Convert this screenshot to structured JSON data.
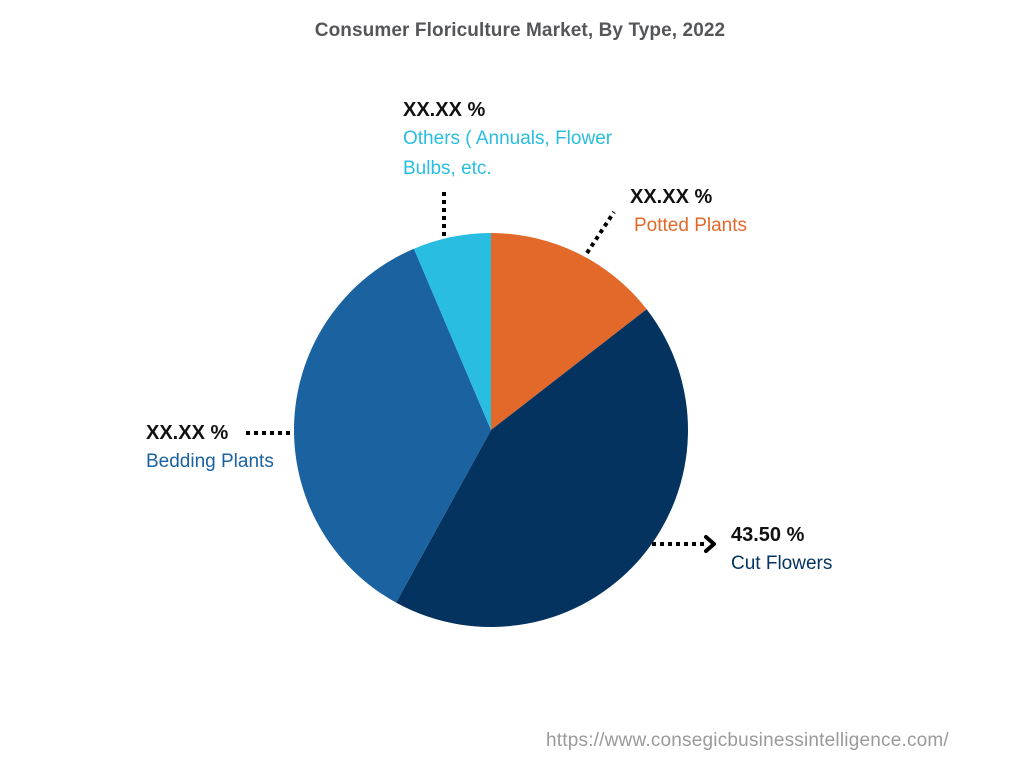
{
  "chart_data": {
    "type": "pie",
    "title": "Consumer Floriculture Market, By Type, 2022",
    "start_angle_deg": 0,
    "direction": "clockwise",
    "slices": [
      {
        "name": "Potted Plants",
        "label_value": "XX.XX %",
        "estimated_value": 14.5,
        "color": "#E2692A"
      },
      {
        "name": "Cut Flowers",
        "label_value": "43.50 %",
        "estimated_value": 43.5,
        "color": "#04335F"
      },
      {
        "name": "Bedding Plants",
        "label_value": "XX.XX %",
        "estimated_value": 35.6,
        "color": "#1A62A0"
      },
      {
        "name": "Others ( Annuals, Flower Bulbs, etc.",
        "label_value": "XX.XX %",
        "estimated_value": 6.4,
        "color": "#29BEE1"
      }
    ],
    "legend": "none (inline labels with dotted leader lines)",
    "center": [
      491,
      430
    ],
    "radius": 197
  },
  "labels": {
    "others": {
      "pct": "XX.XX %",
      "name_line1": "Others ( Annuals, Flower",
      "name_line2": "Bulbs, etc."
    },
    "potted": {
      "pct": "XX.XX %",
      "name": "Potted Plants"
    },
    "bedding": {
      "pct": "XX.XX %",
      "name": "Bedding Plants"
    },
    "cut": {
      "pct": "43.50 %",
      "name": "Cut Flowers"
    }
  },
  "source": "https://www.consegicbusinessintelligence.com/"
}
